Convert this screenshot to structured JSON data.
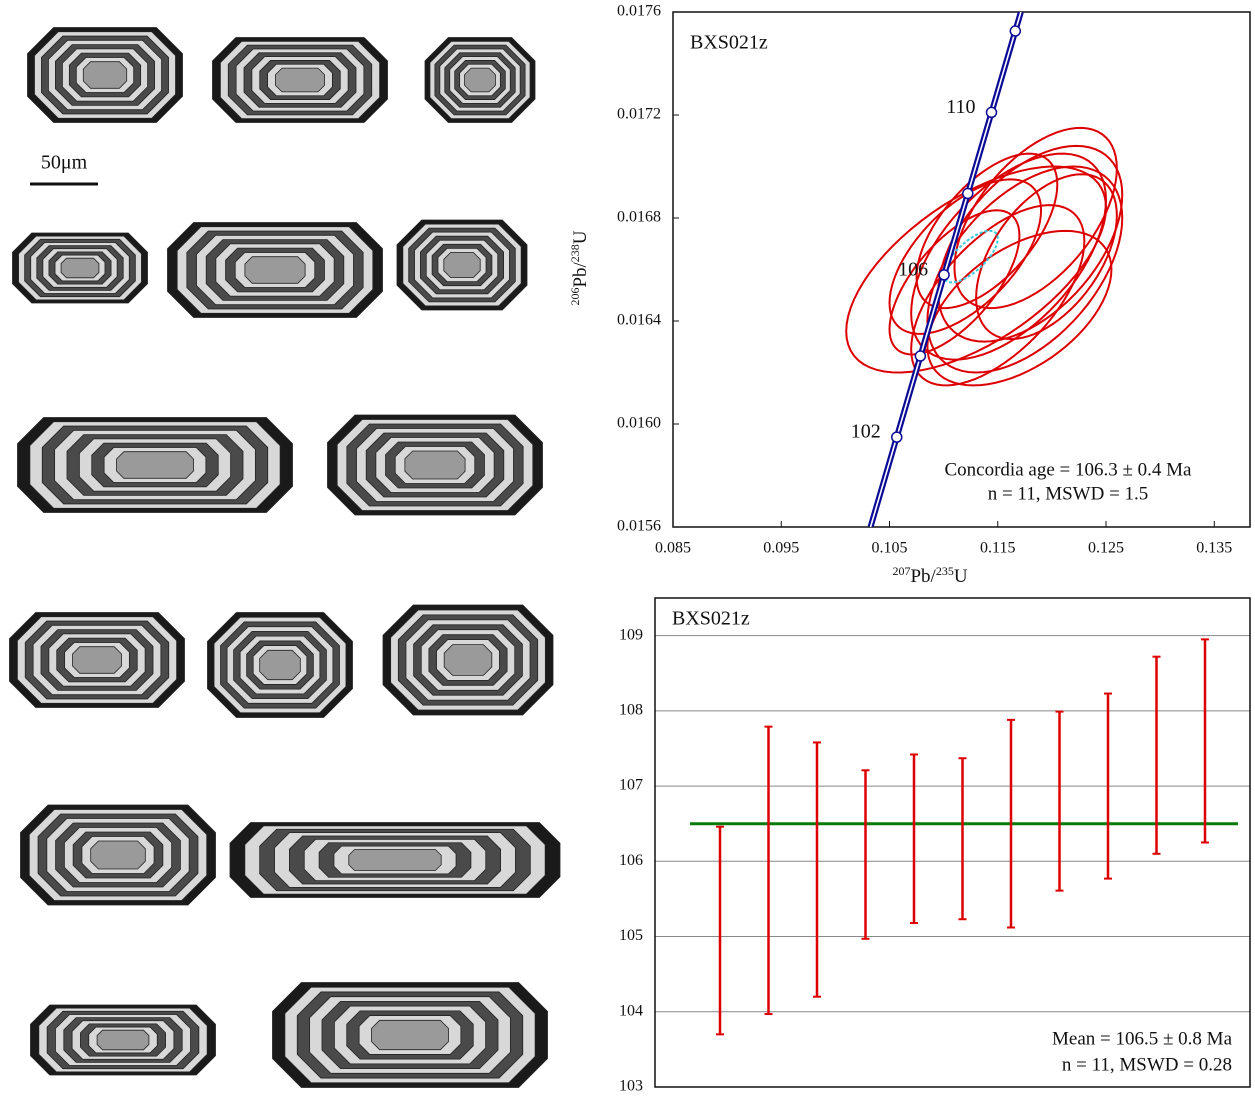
{
  "figure": {
    "scale_label": "50μm"
  },
  "chart_data": [
    {
      "type": "concordia",
      "title": "BXS021z",
      "xlabel": [
        "207",
        "Pb/",
        "235",
        "U"
      ],
      "ylabel": [
        "206",
        "Pb/",
        "238",
        "U"
      ],
      "xlim": [
        0.085,
        0.1383
      ],
      "ylim": [
        0.0156,
        0.0176
      ],
      "xticks": [
        0.085,
        0.095,
        0.105,
        0.115,
        0.125,
        0.135
      ],
      "yticks": [
        0.0156,
        {
          "value": 0.016,
          "label": "0.0160"
        },
        0.0164,
        0.0168,
        0.0172,
        0.0176
      ],
      "concordia": {
        "color": "#0b0b96",
        "ages": [
          102,
          null,
          106,
          null,
          110,
          null
        ],
        "x": [
          0.10567,
          0.10785,
          0.11004,
          0.11223,
          0.11442,
          0.11662
        ],
        "y": [
          0.015949,
          0.016264,
          0.016579,
          0.016895,
          0.01721,
          0.017526
        ]
      },
      "series": [
        {
          "color": "#dd0000",
          "x": [
            0.113,
            0.116,
            0.115,
            0.118,
            0.112,
            0.117,
            0.1185,
            0.111,
            0.1175,
            0.114,
            0.1195
          ],
          "y": [
            0.0166,
            0.01665,
            0.0165,
            0.0167,
            0.01665,
            0.01645,
            0.0168,
            0.01655,
            0.0166,
            0.01675,
            0.01665
          ],
          "sx": [
            0.012,
            0.009,
            0.008,
            0.0085,
            0.007,
            0.0085,
            0.0075,
            0.006,
            0.009,
            0.0065,
            0.0065
          ],
          "sy": [
            0.0004,
            0.0004,
            0.00035,
            0.00038,
            0.0003,
            0.0003,
            0.00035,
            0.00028,
            0.0004,
            0.0003,
            0.00032
          ],
          "rho": [
            0.6,
            0.55,
            0.6,
            0.5,
            0.6,
            0.5,
            0.55,
            0.65,
            0.5,
            0.6,
            0.5
          ]
        },
        {
          "color": "#33ccdd",
          "x": [
            0.1125
          ],
          "y": [
            0.01665
          ],
          "sx": [
            0.0025
          ],
          "sy": [
            0.0001
          ],
          "rho": [
            0.7
          ]
        }
      ],
      "annotations": [
        "Concordia age = 106.3 ± 0.4 Ma",
        "n = 11, MSWD = 1.5"
      ]
    },
    {
      "type": "errorbar",
      "title": "BXS021z",
      "ylim": [
        103,
        109.5
      ],
      "yticks": [
        103,
        104,
        105,
        106,
        107,
        108,
        109
      ],
      "grid": true,
      "values": [
        105.08,
        105.88,
        105.89,
        106.09,
        106.3,
        106.3,
        106.5,
        106.8,
        107.0,
        107.41,
        107.6
      ],
      "errors": [
        1.38,
        1.91,
        1.69,
        1.12,
        1.12,
        1.07,
        1.38,
        1.19,
        1.23,
        1.31,
        1.35
      ],
      "color": "#dd0000",
      "mean": 106.5,
      "mean_color": "#0a7a0a",
      "annotations": [
        "Mean = 106.5 ± 0.8 Ma",
        "n = 11, MSWD = 0.28"
      ]
    }
  ]
}
